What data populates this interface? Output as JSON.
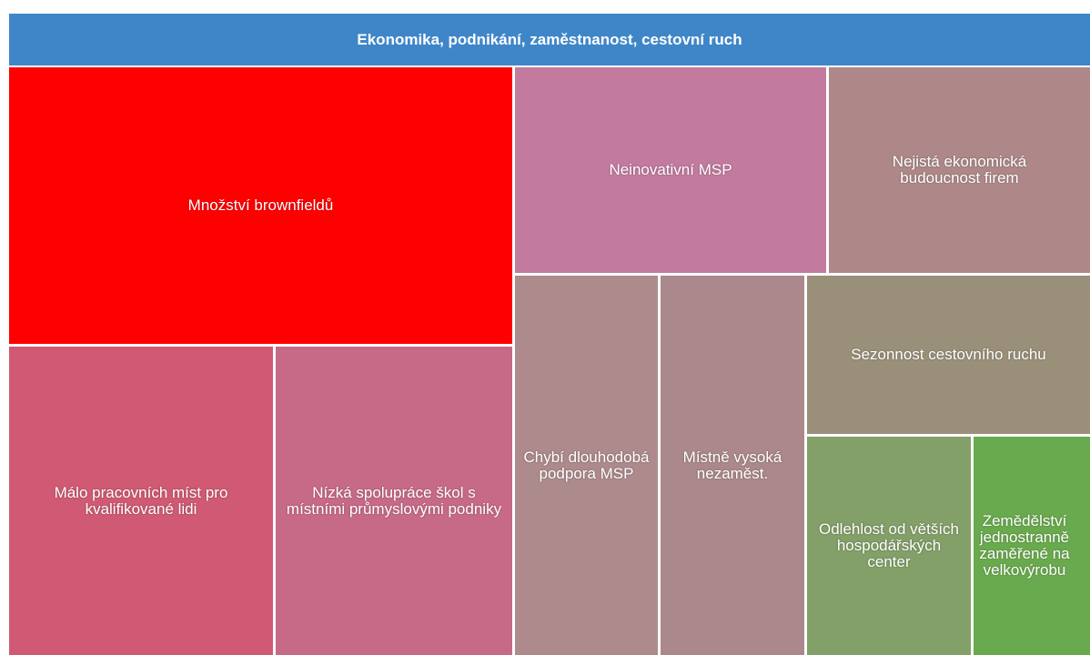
{
  "header": {
    "title": "Ekonomika, podnikání, zaměstnanost, cestovní ruch",
    "color": "#3f86c8"
  },
  "nodes": [
    {
      "label": "Množství brownfieldů",
      "color": "#ff0000"
    },
    {
      "label": "Neinovativní MSP",
      "color": "#c27a9e"
    },
    {
      "label": "Nejistá ekonomická budoucnost firem",
      "color": "#ae8889"
    },
    {
      "label": "Málo pracovních míst pro kvalifikované lidi",
      "color": "#d05a73"
    },
    {
      "label": "Nízká spolupráce škol s místními průmyslovými podniky",
      "color": "#c76a88"
    },
    {
      "label": "Chybí dlouhodobá podpora MSP",
      "color": "#ad8a8c"
    },
    {
      "label": "Místně vysoká nezaměst.",
      "color": "#ab888b"
    },
    {
      "label": "Sezonnost cestovního ruchu",
      "color": "#9a9079"
    },
    {
      "label": "Odlehlost od větších hospodářských center",
      "color": "#82a068"
    },
    {
      "label": "Zemědělství jednostranně zaměřené na velkovýrobu",
      "color": "#6aaa4e"
    }
  ]
}
